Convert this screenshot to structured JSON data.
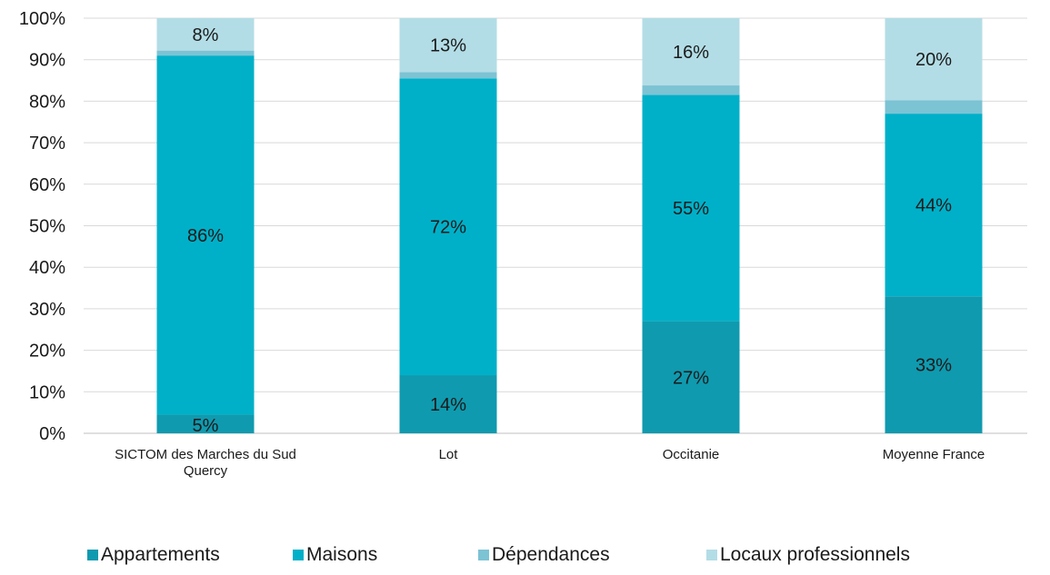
{
  "chart_data": {
    "type": "bar",
    "stacked": true,
    "title": "",
    "xlabel": "",
    "ylabel": "",
    "ylim": [
      0,
      100
    ],
    "yticks": [
      "0%",
      "10%",
      "20%",
      "30%",
      "40%",
      "50%",
      "60%",
      "70%",
      "80%",
      "90%",
      "100%"
    ],
    "grid": true,
    "legend_position": "bottom",
    "categories": [
      "SICTOM des Marches du Sud Quercy",
      "Lot",
      "Occitanie",
      "Moyenne France"
    ],
    "series": [
      {
        "name": "Appartements",
        "color": "#0f9aaf",
        "values": [
          4.5,
          14,
          27,
          33
        ],
        "labels": [
          "5%",
          "14%",
          "27%",
          "33%"
        ]
      },
      {
        "name": "Maisons",
        "color": "#00b0c8",
        "values": [
          86.5,
          71.5,
          54.5,
          44
        ],
        "labels": [
          "86%",
          "72%",
          "55%",
          "44%"
        ]
      },
      {
        "name": "Dépendances",
        "color": "#7cc3d4",
        "values": [
          1.2,
          1.5,
          2.3,
          3.2
        ],
        "labels": [
          "",
          "",
          "",
          ""
        ]
      },
      {
        "name": "Locaux professionnels",
        "color": "#b3dde6",
        "values": [
          7.8,
          13,
          16.2,
          19.8
        ],
        "labels": [
          "8%",
          "13%",
          "16%",
          "20%"
        ]
      }
    ]
  }
}
